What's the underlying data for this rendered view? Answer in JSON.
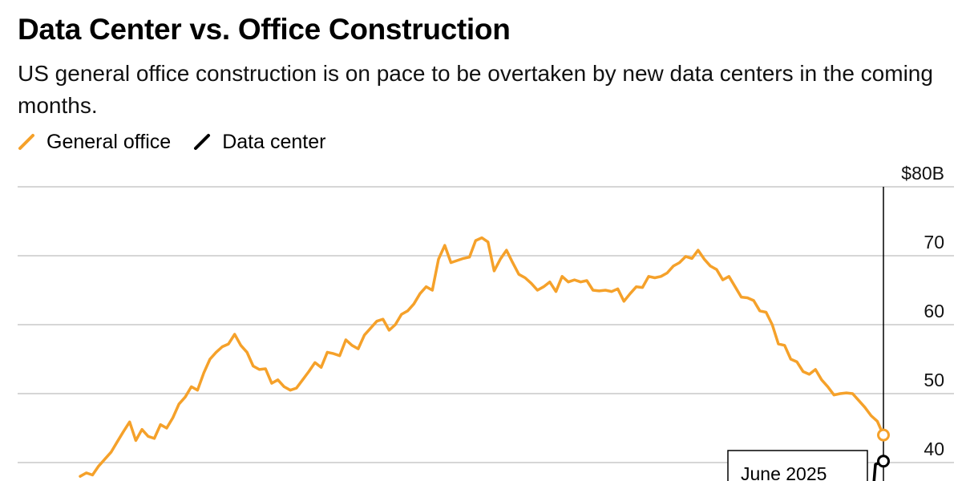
{
  "title": "Data Center vs. Office Construction",
  "subtitle": "US general office construction is on pace to be overtaken by new data centers in the coming months.",
  "colors": {
    "general_office": "#f5a12a",
    "data_center": "#000000",
    "grid": "#c8c8c8"
  },
  "legend": [
    {
      "label": "General office",
      "color": "#f5a12a"
    },
    {
      "label": "Data center",
      "color": "#000000"
    }
  ],
  "callout": {
    "label": "June 2025"
  },
  "chart_data": {
    "type": "line",
    "title": "Data Center vs. Office Construction",
    "xlabel": "",
    "ylabel": "",
    "y_unit_prefix": "$",
    "y_unit_suffix": "B",
    "ylim": [
      38,
      80
    ],
    "yticks": [
      40,
      50,
      60,
      70,
      80
    ],
    "ytick_labels": [
      "40",
      "50",
      "60",
      "70",
      "$80B"
    ],
    "grid": true,
    "legend_position": "top-left",
    "x_end_label": "June 2025",
    "series": [
      {
        "name": "General office",
        "values": [
          38,
          38.5,
          38.2,
          39.5,
          40.5,
          41.5,
          43,
          44.5,
          45.9,
          43.2,
          44.8,
          43.8,
          43.5,
          45.5,
          45,
          46.5,
          48.5,
          49.5,
          51,
          50.5,
          53,
          55,
          56,
          56.8,
          57.2,
          58.6,
          57,
          56,
          54,
          53.5,
          53.6,
          51.5,
          52,
          51,
          50.5,
          50.8,
          52,
          53.2,
          54.5,
          53.8,
          56,
          55.8,
          55.5,
          57.8,
          57,
          56.5,
          58.5,
          59.5,
          60.5,
          60.8,
          59.2,
          60,
          61.5,
          62,
          63,
          64.5,
          65.5,
          65,
          69.5,
          71.5,
          69,
          69.3,
          69.6,
          69.8,
          72.2,
          72.6,
          72,
          67.8,
          69.5,
          70.8,
          69,
          67.3,
          66.8,
          66,
          65,
          65.5,
          66.2,
          64.8,
          67,
          66.2,
          66.5,
          66.2,
          66.4,
          65,
          64.9,
          65,
          64.8,
          65.2,
          63.4,
          64.5,
          65.5,
          65.4,
          67,
          66.8,
          67,
          67.5,
          68.5,
          69,
          69.9,
          69.6,
          70.8,
          69.5,
          68.5,
          68,
          66.5,
          67,
          65.5,
          64,
          63.9,
          63.5,
          62,
          61.8,
          60,
          57.2,
          57,
          55,
          54.6,
          53.2,
          52.8,
          53.5,
          52,
          51,
          49.8,
          50,
          50.1,
          50,
          49,
          48,
          46.8,
          46,
          44
        ]
      },
      {
        "name": "Data center",
        "values": [
          37,
          40.2
        ]
      }
    ]
  }
}
